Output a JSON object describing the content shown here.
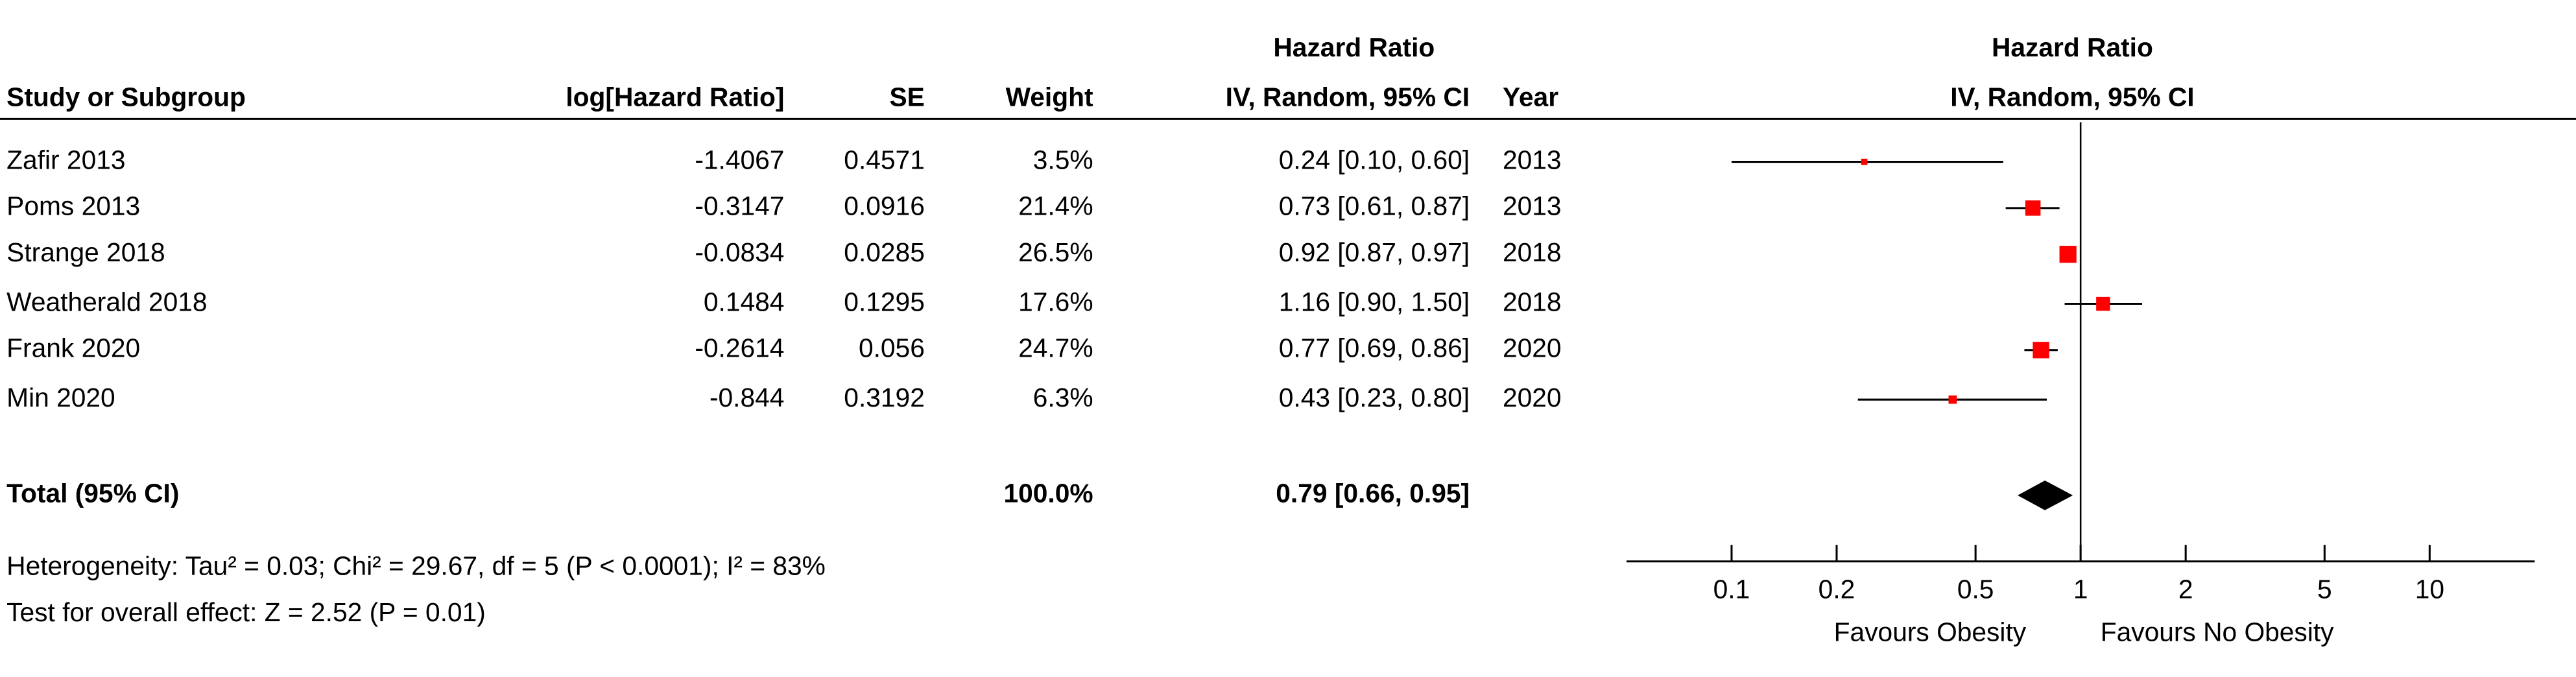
{
  "chart_data": {
    "type": "forest",
    "xscale": "log",
    "xlim": [
      0.05,
      20
    ],
    "xticks": [
      0.1,
      0.2,
      0.5,
      1,
      2,
      5,
      10
    ],
    "marker_color": "#ff0000",
    "line_color": "#000000",
    "diamond_color": "#000000",
    "headers": {
      "study": "Study or Subgroup",
      "log_hr": "log[Hazard Ratio]",
      "se": "SE",
      "weight": "Weight",
      "hr_top": "Hazard Ratio",
      "hr": "IV, Random, 95% CI",
      "year": "Year",
      "plot_top": "Hazard Ratio",
      "plot": "IV, Random, 95% CI"
    },
    "studies": [
      {
        "name": "Zafir 2013",
        "log_hr": -1.4067,
        "se": 0.4571,
        "weight": 3.5,
        "weight_label": "3.5%",
        "hr": 0.24,
        "lower": 0.1,
        "upper": 0.6,
        "ci_label": "0.24 [0.10, 0.60]",
        "year": 2013
      },
      {
        "name": "Poms 2013",
        "log_hr": -0.3147,
        "se": 0.0916,
        "weight": 21.4,
        "weight_label": "21.4%",
        "hr": 0.73,
        "lower": 0.61,
        "upper": 0.87,
        "ci_label": "0.73 [0.61, 0.87]",
        "year": 2013
      },
      {
        "name": "Strange 2018",
        "log_hr": -0.0834,
        "se": 0.0285,
        "weight": 26.5,
        "weight_label": "26.5%",
        "hr": 0.92,
        "lower": 0.87,
        "upper": 0.97,
        "ci_label": "0.92 [0.87, 0.97]",
        "year": 2018
      },
      {
        "name": "Weatherald 2018",
        "log_hr": 0.1484,
        "se": 0.1295,
        "weight": 17.6,
        "weight_label": "17.6%",
        "hr": 1.16,
        "lower": 0.9,
        "upper": 1.5,
        "ci_label": "1.16 [0.90, 1.50]",
        "year": 2018
      },
      {
        "name": "Frank 2020",
        "log_hr": -0.2614,
        "se": 0.056,
        "weight": 24.7,
        "weight_label": "24.7%",
        "hr": 0.77,
        "lower": 0.69,
        "upper": 0.86,
        "ci_label": "0.77 [0.69, 0.86]",
        "year": 2020
      },
      {
        "name": "Min 2020",
        "log_hr": -0.844,
        "se": 0.3192,
        "weight": 6.3,
        "weight_label": "6.3%",
        "hr": 0.43,
        "lower": 0.23,
        "upper": 0.8,
        "ci_label": "0.43 [0.23, 0.80]",
        "year": 2020
      }
    ],
    "total": {
      "name": "Total (95% CI)",
      "weight": 100,
      "weight_label": "100.0%",
      "hr": 0.79,
      "lower": 0.66,
      "upper": 0.95,
      "ci_label": "0.79 [0.66, 0.95]"
    },
    "heterogeneity": "Heterogeneity: Tau² = 0.03; Chi² = 29.67, df = 5 (P < 0.0001); I² = 83%",
    "overall_effect": "Test for overall effect: Z = 2.52 (P = 0.01)",
    "x_label_left": "Favours Obesity",
    "x_label_right": "Favours No Obesity"
  }
}
